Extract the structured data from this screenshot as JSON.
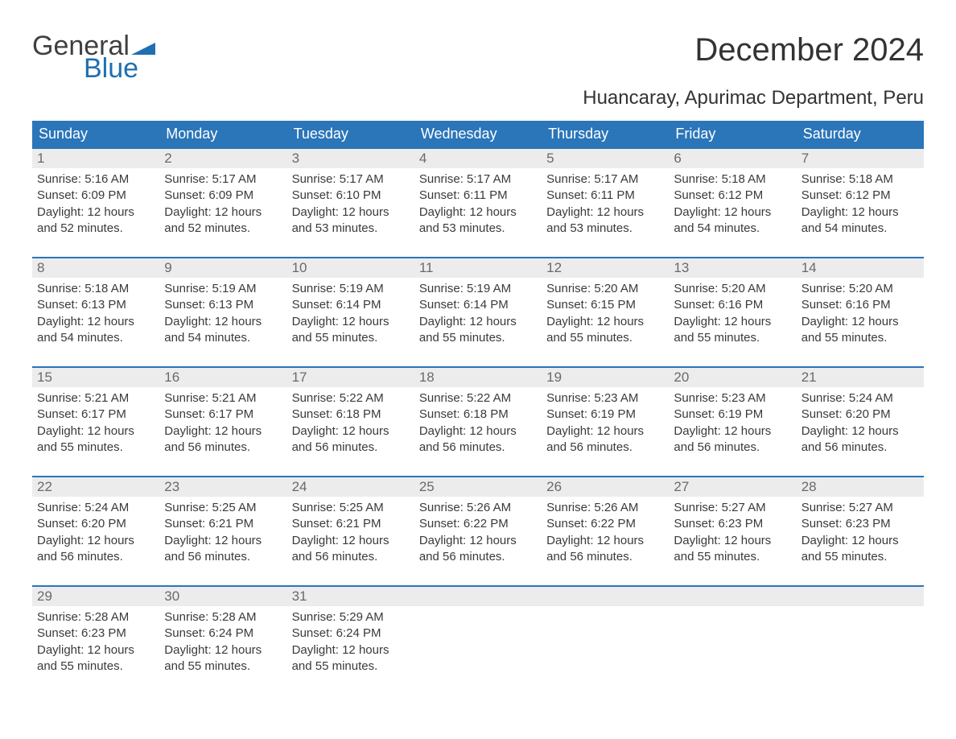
{
  "logo": {
    "text_general": "General",
    "text_blue": "Blue",
    "flag_color": "#1f6fb2"
  },
  "title": "December 2024",
  "subtitle": "Huancaray, Apurimac Department, Peru",
  "colors": {
    "header_bg": "#2b75b9",
    "header_text": "#ffffff",
    "row_border": "#2b75b9",
    "daynum_bg": "#ececec",
    "daynum_text": "#6a6a6a",
    "body_text": "#3a3a3a"
  },
  "weekdays": [
    "Sunday",
    "Monday",
    "Tuesday",
    "Wednesday",
    "Thursday",
    "Friday",
    "Saturday"
  ],
  "weeks": [
    [
      {
        "n": "1",
        "sunrise": "5:16 AM",
        "sunset": "6:09 PM",
        "dl1": "12 hours",
        "dl2": "and 52 minutes."
      },
      {
        "n": "2",
        "sunrise": "5:17 AM",
        "sunset": "6:09 PM",
        "dl1": "12 hours",
        "dl2": "and 52 minutes."
      },
      {
        "n": "3",
        "sunrise": "5:17 AM",
        "sunset": "6:10 PM",
        "dl1": "12 hours",
        "dl2": "and 53 minutes."
      },
      {
        "n": "4",
        "sunrise": "5:17 AM",
        "sunset": "6:11 PM",
        "dl1": "12 hours",
        "dl2": "and 53 minutes."
      },
      {
        "n": "5",
        "sunrise": "5:17 AM",
        "sunset": "6:11 PM",
        "dl1": "12 hours",
        "dl2": "and 53 minutes."
      },
      {
        "n": "6",
        "sunrise": "5:18 AM",
        "sunset": "6:12 PM",
        "dl1": "12 hours",
        "dl2": "and 54 minutes."
      },
      {
        "n": "7",
        "sunrise": "5:18 AM",
        "sunset": "6:12 PM",
        "dl1": "12 hours",
        "dl2": "and 54 minutes."
      }
    ],
    [
      {
        "n": "8",
        "sunrise": "5:18 AM",
        "sunset": "6:13 PM",
        "dl1": "12 hours",
        "dl2": "and 54 minutes."
      },
      {
        "n": "9",
        "sunrise": "5:19 AM",
        "sunset": "6:13 PM",
        "dl1": "12 hours",
        "dl2": "and 54 minutes."
      },
      {
        "n": "10",
        "sunrise": "5:19 AM",
        "sunset": "6:14 PM",
        "dl1": "12 hours",
        "dl2": "and 55 minutes."
      },
      {
        "n": "11",
        "sunrise": "5:19 AM",
        "sunset": "6:14 PM",
        "dl1": "12 hours",
        "dl2": "and 55 minutes."
      },
      {
        "n": "12",
        "sunrise": "5:20 AM",
        "sunset": "6:15 PM",
        "dl1": "12 hours",
        "dl2": "and 55 minutes."
      },
      {
        "n": "13",
        "sunrise": "5:20 AM",
        "sunset": "6:16 PM",
        "dl1": "12 hours",
        "dl2": "and 55 minutes."
      },
      {
        "n": "14",
        "sunrise": "5:20 AM",
        "sunset": "6:16 PM",
        "dl1": "12 hours",
        "dl2": "and 55 minutes."
      }
    ],
    [
      {
        "n": "15",
        "sunrise": "5:21 AM",
        "sunset": "6:17 PM",
        "dl1": "12 hours",
        "dl2": "and 55 minutes."
      },
      {
        "n": "16",
        "sunrise": "5:21 AM",
        "sunset": "6:17 PM",
        "dl1": "12 hours",
        "dl2": "and 56 minutes."
      },
      {
        "n": "17",
        "sunrise": "5:22 AM",
        "sunset": "6:18 PM",
        "dl1": "12 hours",
        "dl2": "and 56 minutes."
      },
      {
        "n": "18",
        "sunrise": "5:22 AM",
        "sunset": "6:18 PM",
        "dl1": "12 hours",
        "dl2": "and 56 minutes."
      },
      {
        "n": "19",
        "sunrise": "5:23 AM",
        "sunset": "6:19 PM",
        "dl1": "12 hours",
        "dl2": "and 56 minutes."
      },
      {
        "n": "20",
        "sunrise": "5:23 AM",
        "sunset": "6:19 PM",
        "dl1": "12 hours",
        "dl2": "and 56 minutes."
      },
      {
        "n": "21",
        "sunrise": "5:24 AM",
        "sunset": "6:20 PM",
        "dl1": "12 hours",
        "dl2": "and 56 minutes."
      }
    ],
    [
      {
        "n": "22",
        "sunrise": "5:24 AM",
        "sunset": "6:20 PM",
        "dl1": "12 hours",
        "dl2": "and 56 minutes."
      },
      {
        "n": "23",
        "sunrise": "5:25 AM",
        "sunset": "6:21 PM",
        "dl1": "12 hours",
        "dl2": "and 56 minutes."
      },
      {
        "n": "24",
        "sunrise": "5:25 AM",
        "sunset": "6:21 PM",
        "dl1": "12 hours",
        "dl2": "and 56 minutes."
      },
      {
        "n": "25",
        "sunrise": "5:26 AM",
        "sunset": "6:22 PM",
        "dl1": "12 hours",
        "dl2": "and 56 minutes."
      },
      {
        "n": "26",
        "sunrise": "5:26 AM",
        "sunset": "6:22 PM",
        "dl1": "12 hours",
        "dl2": "and 56 minutes."
      },
      {
        "n": "27",
        "sunrise": "5:27 AM",
        "sunset": "6:23 PM",
        "dl1": "12 hours",
        "dl2": "and 55 minutes."
      },
      {
        "n": "28",
        "sunrise": "5:27 AM",
        "sunset": "6:23 PM",
        "dl1": "12 hours",
        "dl2": "and 55 minutes."
      }
    ],
    [
      {
        "n": "29",
        "sunrise": "5:28 AM",
        "sunset": "6:23 PM",
        "dl1": "12 hours",
        "dl2": "and 55 minutes."
      },
      {
        "n": "30",
        "sunrise": "5:28 AM",
        "sunset": "6:24 PM",
        "dl1": "12 hours",
        "dl2": "and 55 minutes."
      },
      {
        "n": "31",
        "sunrise": "5:29 AM",
        "sunset": "6:24 PM",
        "dl1": "12 hours",
        "dl2": "and 55 minutes."
      },
      null,
      null,
      null,
      null
    ]
  ],
  "labels": {
    "sunrise": "Sunrise: ",
    "sunset": "Sunset: ",
    "daylight": "Daylight: "
  }
}
